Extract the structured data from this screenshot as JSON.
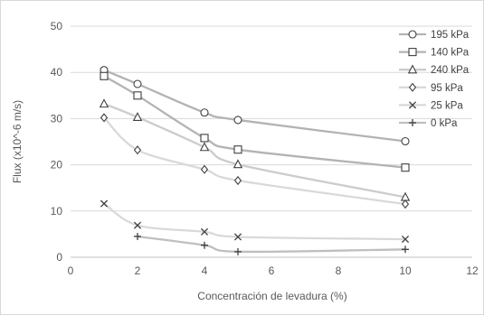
{
  "chart_data": {
    "type": "line",
    "title": "",
    "xlabel": "Concentración de levadura (%)",
    "ylabel": "Flux (x10^-6 m/s)",
    "xlim": [
      0,
      12
    ],
    "ylim": [
      0,
      50
    ],
    "xticks": [
      0,
      2,
      4,
      6,
      8,
      10,
      12
    ],
    "yticks": [
      0,
      10,
      20,
      30,
      40,
      50
    ],
    "grid": "horizontal",
    "legend_position": "right",
    "line_style": "smoothed",
    "series": [
      {
        "name": "195 kPa",
        "marker": "circle",
        "color": "#b3b3b3",
        "x": [
          1,
          2,
          4,
          5,
          10
        ],
        "y": [
          40.5,
          37.5,
          31.3,
          29.7,
          25.1
        ]
      },
      {
        "name": "140 kPa",
        "marker": "square",
        "color": "#b3b3b3",
        "x": [
          1,
          2,
          4,
          5,
          10
        ],
        "y": [
          39.2,
          35.0,
          25.8,
          23.3,
          19.4
        ]
      },
      {
        "name": "240 kPa",
        "marker": "triangle",
        "color": "#cccccc",
        "x": [
          1,
          2,
          4,
          5,
          10
        ],
        "y": [
          33.2,
          30.3,
          23.8,
          20.1,
          13.0
        ]
      },
      {
        "name": "95 kPa",
        "marker": "diamond",
        "color": "#d9d9d9",
        "x": [
          1,
          2,
          4,
          5,
          10
        ],
        "y": [
          30.2,
          23.2,
          19.0,
          16.6,
          11.5
        ]
      },
      {
        "name": "25 kPa",
        "marker": "x",
        "color": "#d9d9d9",
        "x": [
          1,
          2,
          4,
          5,
          10
        ],
        "y": [
          11.6,
          6.9,
          5.5,
          4.4,
          3.9
        ]
      },
      {
        "name": "0 kPa",
        "marker": "plus",
        "color": "#bfbfbf",
        "x": [
          2,
          4,
          5,
          10
        ],
        "y": [
          4.5,
          2.6,
          1.2,
          1.7
        ]
      }
    ]
  },
  "colors": {
    "grid": "#d9d9d9",
    "axis": "#bfbfbf",
    "marker_stroke": "#404040"
  }
}
